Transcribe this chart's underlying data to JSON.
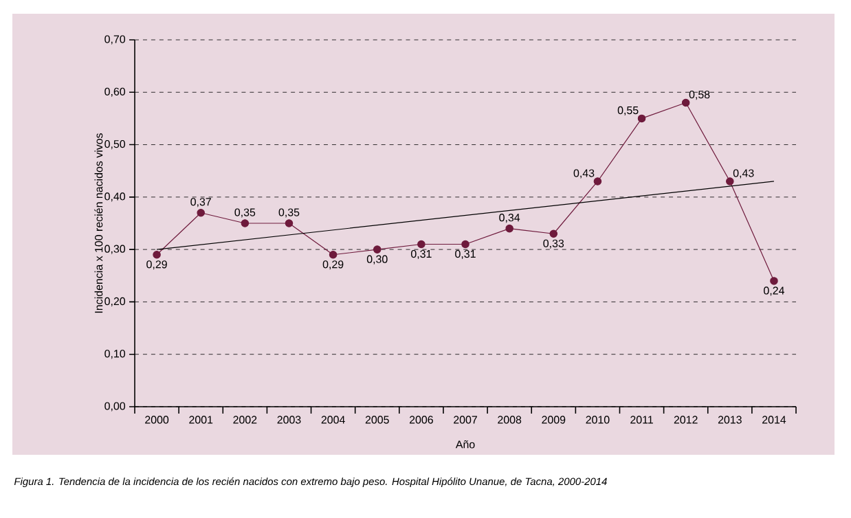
{
  "chart_data": {
    "type": "line",
    "xlabel": "Año",
    "ylabel": "Incidencia x 100 recién nacidos vivos",
    "categories": [
      "2000",
      "2001",
      "2002",
      "2003",
      "2004",
      "2005",
      "2006",
      "2007",
      "2008",
      "2009",
      "2010",
      "2011",
      "2012",
      "2013",
      "2014"
    ],
    "series": [
      {
        "color": "#6e1a3c",
        "marker": "circle",
        "values": [
          0.29,
          0.37,
          0.35,
          0.35,
          0.29,
          0.3,
          0.31,
          0.31,
          0.34,
          0.33,
          0.43,
          0.55,
          0.58,
          0.43,
          0.24
        ],
        "value_labels": [
          "0,29",
          "0,37",
          "0,35",
          "0,35",
          "0,29",
          "0,30",
          "0,31",
          "0,31",
          "0,34",
          "0,33",
          "0,43",
          "0,55",
          "0,58",
          "0,43",
          "0,24"
        ]
      },
      {
        "color": "#000000",
        "marker": "none",
        "values": [
          0.3,
          null,
          null,
          null,
          null,
          null,
          null,
          null,
          null,
          null,
          null,
          null,
          null,
          null,
          0.43
        ]
      }
    ],
    "ylim": [
      0,
      0.7
    ],
    "yticks": [
      {
        "value": 0,
        "label": "0,00"
      },
      {
        "value": 0.1,
        "label": "0,10"
      },
      {
        "value": 0.2,
        "label": "0,20"
      },
      {
        "value": 0.3,
        "label": "0,30"
      },
      {
        "value": 0.4,
        "label": "0,40"
      },
      {
        "value": 0.5,
        "label": "0,50"
      },
      {
        "value": 0.6,
        "label": "0,60"
      },
      {
        "value": 0.7,
        "label": "0,70"
      }
    ],
    "grid": "y",
    "annotations": [
      "Figura 1. Tendencia de la incidencia de los recién nacidos con extremo bajo peso. Hospital Hipólito Unanue, de Tacna, 2000-2014"
    ]
  }
}
